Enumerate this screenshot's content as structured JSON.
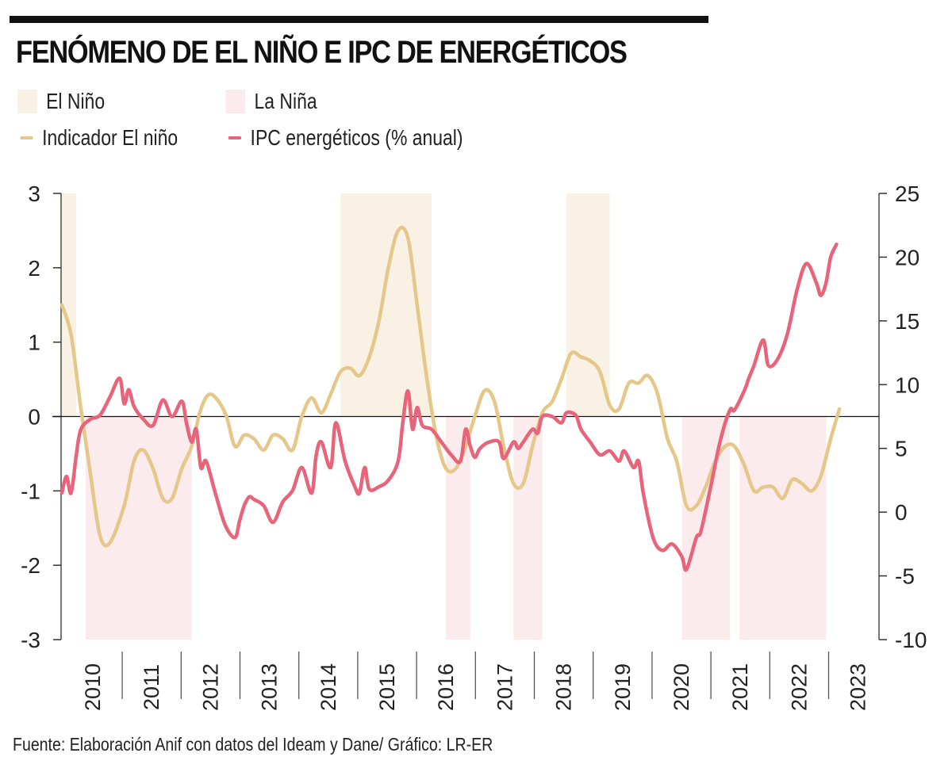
{
  "header": {
    "title": "FENÓMENO DE EL NIÑO E IPC DE ENERGÉTICOS"
  },
  "legend": {
    "items": [
      {
        "label": "El Niño",
        "kind": "band",
        "color": "#f9f1e3"
      },
      {
        "label": "La Niña",
        "kind": "band",
        "color": "#fcebec"
      },
      {
        "label": "Indicador El niño",
        "kind": "line",
        "color": "#e6c78a"
      },
      {
        "label": "IPC energéticos (% anual)",
        "kind": "line",
        "color": "#e8647a"
      }
    ]
  },
  "footer": {
    "source": "Fuente: Elaboración Anif con datos del Ideam y Dane/ Gráfico: LR-ER"
  },
  "chart_data": {
    "type": "line",
    "title": "FENÓMENO DE EL NIÑO E IPC DE ENERGÉTICOS",
    "xlabel": "",
    "ylabel_left": "Indicador El niño",
    "ylabel_right": "IPC energéticos (% anual)",
    "x_range": [
      2009.92,
      2023.4
    ],
    "x_ticks": [
      "2010",
      "2011",
      "2012",
      "2013",
      "2014",
      "2015",
      "2016",
      "2017",
      "2018",
      "2019",
      "2020",
      "2021",
      "2022",
      "2023"
    ],
    "y_left": {
      "range": [
        -3,
        3
      ],
      "ticks": [
        3,
        2,
        1,
        0,
        -1,
        -2,
        -3
      ],
      "tick_labels": [
        "3",
        "2",
        "1",
        "0",
        "-1",
        "-2",
        "-3"
      ]
    },
    "y_right": {
      "range": [
        -10,
        25
      ],
      "ticks": [
        25,
        20,
        15,
        10,
        5,
        0,
        -5,
        -10
      ],
      "tick_labels": [
        "25",
        "20",
        "15",
        "10",
        "5",
        "0",
        "-5",
        "-10"
      ]
    },
    "zero_line": {
      "axis": "left",
      "value": 0
    },
    "grid": false,
    "legend_position": "top-left",
    "bands": [
      {
        "type": "El Niño",
        "start": 2009.92,
        "end": 2010.17,
        "from": 0,
        "to": 3
      },
      {
        "type": "La Niña",
        "start": 2010.33,
        "end": 2012.17,
        "from": -3,
        "to": 0
      },
      {
        "type": "El Niño",
        "start": 2014.75,
        "end": 2016.33,
        "from": 0,
        "to": 3
      },
      {
        "type": "La Niña",
        "start": 2016.58,
        "end": 2017.0,
        "from": -3,
        "to": 0
      },
      {
        "type": "La Niña",
        "start": 2017.75,
        "end": 2018.25,
        "from": -3,
        "to": 0
      },
      {
        "type": "El Niño",
        "start": 2018.67,
        "end": 2019.42,
        "from": 0,
        "to": 3
      },
      {
        "type": "La Niña",
        "start": 2020.67,
        "end": 2021.5,
        "from": -3,
        "to": 0
      },
      {
        "type": "La Niña",
        "start": 2021.67,
        "end": 2023.17,
        "from": -3,
        "to": 0
      }
    ],
    "series": [
      {
        "name": "Indicador El niño",
        "axis": "left",
        "color": "#e6c78a",
        "x": [
          2009.92,
          2010.08,
          2010.25,
          2010.42,
          2010.58,
          2010.75,
          2011.0,
          2011.17,
          2011.33,
          2011.5,
          2011.67,
          2011.83,
          2012.0,
          2012.17,
          2012.33,
          2012.5,
          2012.75,
          2012.92,
          2013.08,
          2013.25,
          2013.42,
          2013.58,
          2013.75,
          2013.92,
          2014.08,
          2014.25,
          2014.42,
          2014.58,
          2014.75,
          2014.92,
          2015.08,
          2015.25,
          2015.42,
          2015.58,
          2015.75,
          2015.92,
          2016.08,
          2016.25,
          2016.42,
          2016.58,
          2016.75,
          2016.92,
          2017.08,
          2017.25,
          2017.42,
          2017.58,
          2017.75,
          2017.92,
          2018.08,
          2018.25,
          2018.42,
          2018.58,
          2018.75,
          2018.92,
          2019.08,
          2019.25,
          2019.42,
          2019.58,
          2019.75,
          2019.92,
          2020.08,
          2020.25,
          2020.42,
          2020.58,
          2020.75,
          2020.92,
          2021.08,
          2021.25,
          2021.42,
          2021.58,
          2021.75,
          2021.92,
          2022.08,
          2022.25,
          2022.42,
          2022.58,
          2022.75,
          2022.92,
          2023.08,
          2023.25,
          2023.4
        ],
        "values": [
          1.5,
          1.1,
          0.1,
          -0.8,
          -1.6,
          -1.7,
          -1.2,
          -0.6,
          -0.45,
          -0.7,
          -1.1,
          -1.1,
          -0.7,
          -0.4,
          0.1,
          0.3,
          0.05,
          -0.4,
          -0.25,
          -0.3,
          -0.45,
          -0.25,
          -0.3,
          -0.45,
          0.0,
          0.25,
          0.05,
          0.3,
          0.6,
          0.65,
          0.55,
          0.8,
          1.3,
          2.0,
          2.5,
          2.4,
          1.5,
          0.5,
          -0.3,
          -0.7,
          -0.7,
          -0.4,
          0.0,
          0.35,
          0.2,
          -0.4,
          -0.9,
          -0.9,
          -0.4,
          0.05,
          0.2,
          0.5,
          0.85,
          0.8,
          0.75,
          0.6,
          0.15,
          0.1,
          0.45,
          0.45,
          0.55,
          0.3,
          -0.3,
          -0.6,
          -1.2,
          -1.2,
          -0.95,
          -0.6,
          -0.4,
          -0.4,
          -0.65,
          -1.0,
          -0.95,
          -0.95,
          -1.1,
          -0.85,
          -0.9,
          -1.0,
          -0.8,
          -0.3,
          0.1
        ]
      },
      {
        "name": "IPC energéticos (% anual)",
        "axis": "right",
        "color": "#e8647a",
        "x": [
          2009.92,
          2010.0,
          2010.08,
          2010.17,
          2010.25,
          2010.42,
          2010.58,
          2010.75,
          2010.92,
          2011.0,
          2011.08,
          2011.17,
          2011.33,
          2011.5,
          2011.67,
          2011.83,
          2012.0,
          2012.08,
          2012.17,
          2012.25,
          2012.33,
          2012.42,
          2012.58,
          2012.75,
          2012.92,
          2013.0,
          2013.08,
          2013.17,
          2013.25,
          2013.42,
          2013.58,
          2013.75,
          2013.92,
          2014.08,
          2014.25,
          2014.33,
          2014.42,
          2014.58,
          2014.67,
          2014.83,
          2015.0,
          2015.08,
          2015.17,
          2015.25,
          2015.42,
          2015.58,
          2015.75,
          2015.83,
          2015.92,
          2016.0,
          2016.08,
          2016.17,
          2016.33,
          2016.5,
          2016.67,
          2016.83,
          2016.92,
          2017.0,
          2017.08,
          2017.17,
          2017.33,
          2017.5,
          2017.58,
          2017.75,
          2017.83,
          2017.92,
          2018.08,
          2018.17,
          2018.25,
          2018.42,
          2018.58,
          2018.67,
          2018.83,
          2018.92,
          2019.08,
          2019.25,
          2019.42,
          2019.58,
          2019.67,
          2019.83,
          2019.92,
          2020.0,
          2020.17,
          2020.33,
          2020.5,
          2020.67,
          2020.75,
          2020.92,
          2021.0,
          2021.17,
          2021.33,
          2021.5,
          2021.58,
          2021.75,
          2021.83,
          2021.92,
          2022.08,
          2022.17,
          2022.33,
          2022.5,
          2022.67,
          2022.83,
          2023.0,
          2023.08,
          2023.17,
          2023.25,
          2023.35
        ],
        "values": [
          1.5,
          2.8,
          1.5,
          4.5,
          6.5,
          7.3,
          7.6,
          9.0,
          10.5,
          8.5,
          9.6,
          8.3,
          7.3,
          6.8,
          8.8,
          7.5,
          8.7,
          7.0,
          5.5,
          6.5,
          3.5,
          4.0,
          1.5,
          -1.0,
          -2.0,
          -0.7,
          0.5,
          1.2,
          1.0,
          0.5,
          -0.8,
          0.8,
          1.7,
          3.5,
          1.5,
          4.5,
          5.5,
          3.5,
          7.0,
          4.0,
          2.0,
          1.5,
          3.5,
          1.8,
          2.0,
          2.5,
          4.0,
          7.0,
          9.5,
          6.5,
          8.2,
          6.8,
          6.5,
          5.5,
          4.5,
          4.0,
          6.5,
          5.2,
          4.3,
          5.0,
          5.5,
          5.5,
          4.2,
          5.5,
          5.0,
          5.5,
          6.5,
          6.2,
          7.5,
          7.5,
          7.0,
          7.8,
          7.6,
          6.5,
          5.5,
          4.5,
          4.8,
          4.0,
          4.8,
          3.5,
          4.0,
          1.5,
          -2.0,
          -3.0,
          -2.5,
          -3.5,
          -4.5,
          -2.0,
          -1.5,
          2.0,
          5.5,
          8.0,
          8.0,
          9.5,
          10.5,
          11.5,
          13.5,
          11.5,
          12.0,
          14.0,
          17.5,
          19.5,
          18.0,
          17.0,
          18.0,
          20.0,
          21.0
        ]
      }
    ]
  }
}
